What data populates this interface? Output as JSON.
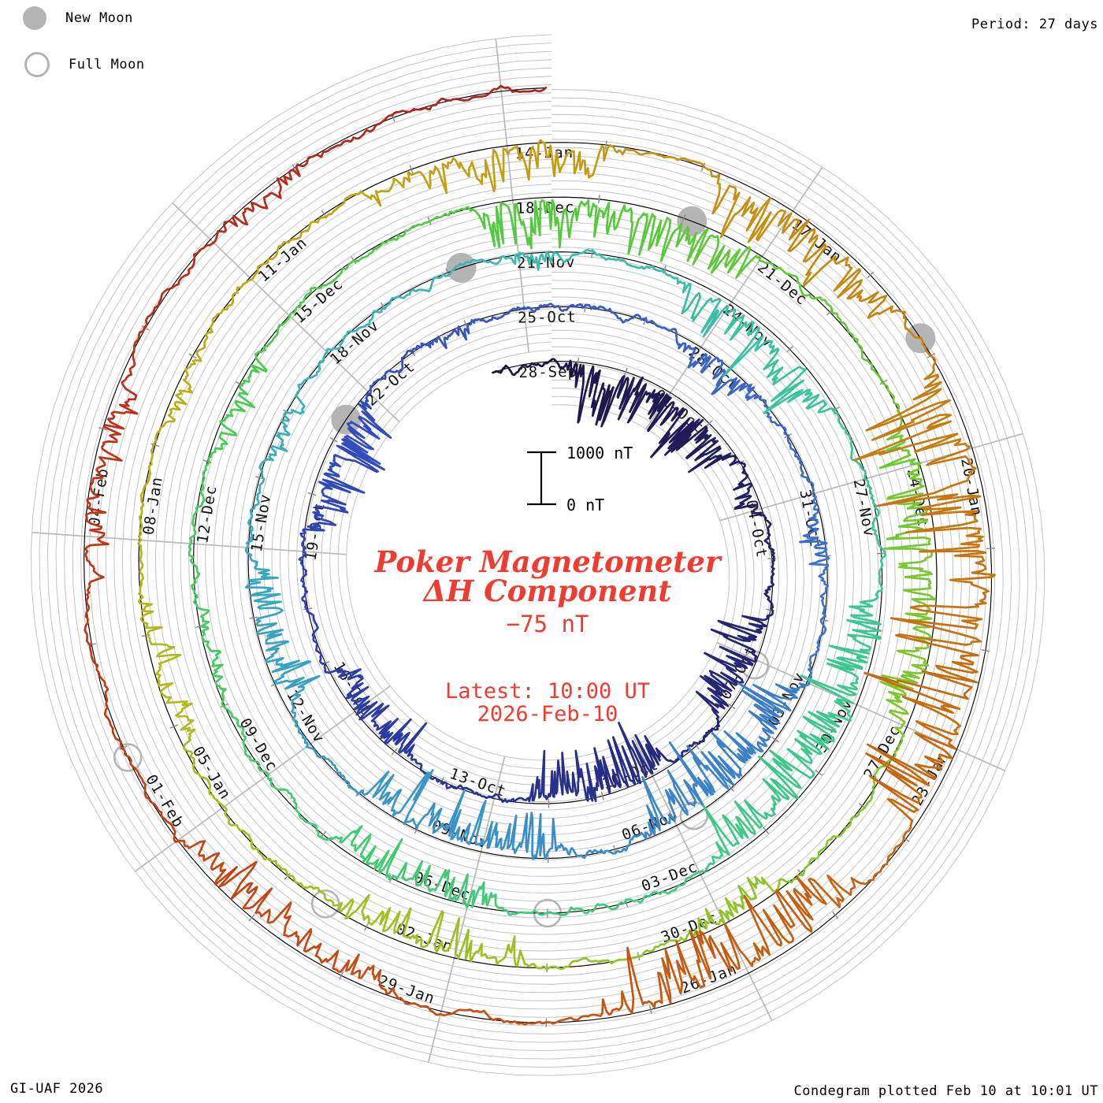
{
  "legend": {
    "new_moon": "New Moon",
    "full_moon": "Full Moon"
  },
  "header": {
    "period": "Period: 27 days"
  },
  "footer": {
    "left": "GI-UAF 2026",
    "right": "Condegram plotted Feb 10 at 10:01 UT"
  },
  "center": {
    "title_line1": "Poker Magnetometer",
    "title_line2": "ΔH Component",
    "baseline_offset": "−75 nT",
    "latest_line1": "Latest: 10:00 UT",
    "latest_line2": "2026-Feb-10"
  },
  "scalebar": {
    "top": "1000 nT",
    "bottom": "0 nT"
  },
  "colors": {
    "grid": "#c6c6c6",
    "spoke": "#b9b9b9",
    "baseline": "#000000",
    "tick": "#8a8a8a",
    "moon": "#b4b4b4",
    "annotation_red": "#ee3c31",
    "label_text": "#141414",
    "trace_stops": [
      [
        0.0,
        "#1d1545"
      ],
      [
        0.08,
        "#25297c"
      ],
      [
        0.16,
        "#2f46b8"
      ],
      [
        0.22,
        "#3a62c6"
      ],
      [
        0.3,
        "#3b8cc8"
      ],
      [
        0.37,
        "#38b0bb"
      ],
      [
        0.44,
        "#3cc49b"
      ],
      [
        0.52,
        "#3fcb70"
      ],
      [
        0.6,
        "#53c93f"
      ],
      [
        0.68,
        "#8ac529"
      ],
      [
        0.74,
        "#b0ba1d"
      ],
      [
        0.8,
        "#c49c12"
      ],
      [
        0.86,
        "#c66c10"
      ],
      [
        0.92,
        "#c64712"
      ],
      [
        0.97,
        "#b92e1b"
      ],
      [
        1.0,
        "#a8241a"
      ]
    ]
  },
  "chart_data": {
    "type": "line",
    "variant": "condegram (polar time-spiral of magnetometer data)",
    "station": "Poker Magnetometer",
    "component": "ΔH",
    "period_days": 27,
    "start_date": "28-Sep",
    "latest": "2026-Feb-10 10:00 UT",
    "total_days": 135.417,
    "lead_in_days": -0.8,
    "baseline_offset_nT": -75,
    "scale_bar_nT": 1000,
    "gridline_spacing_nT": 158,
    "label_step_days": 3,
    "date_labels": [
      {
        "t": 0,
        "label": "28-Sep"
      },
      {
        "t": 3,
        "label": "01-Oct"
      },
      {
        "t": 6,
        "label": "04-Oct"
      },
      {
        "t": 9,
        "label": "07-Oct"
      },
      {
        "t": 12,
        "label": "10-Oct"
      },
      {
        "t": 15,
        "label": "13-Oct"
      },
      {
        "t": 18,
        "label": "16-Oct"
      },
      {
        "t": 21,
        "label": "19-Oct"
      },
      {
        "t": 24,
        "label": "22-Oct"
      },
      {
        "t": 27,
        "label": "25-Oct"
      },
      {
        "t": 30,
        "label": "28-Oct"
      },
      {
        "t": 33,
        "label": "31-Oct"
      },
      {
        "t": 36,
        "label": "03-Nov"
      },
      {
        "t": 39,
        "label": "06-Nov"
      },
      {
        "t": 42,
        "label": "09-Nov"
      },
      {
        "t": 45,
        "label": "12-Nov"
      },
      {
        "t": 48,
        "label": "15-Nov"
      },
      {
        "t": 51,
        "label": "18-Nov"
      },
      {
        "t": 54,
        "label": "21-Nov"
      },
      {
        "t": 57,
        "label": "24-Nov"
      },
      {
        "t": 60,
        "label": "27-Nov"
      },
      {
        "t": 63,
        "label": "30-Nov"
      },
      {
        "t": 66,
        "label": "03-Dec"
      },
      {
        "t": 69,
        "label": "06-Dec"
      },
      {
        "t": 72,
        "label": "09-Dec"
      },
      {
        "t": 75,
        "label": "12-Dec"
      },
      {
        "t": 78,
        "label": "15-Dec"
      },
      {
        "t": 81,
        "label": "18-Dec"
      },
      {
        "t": 84,
        "label": "21-Dec"
      },
      {
        "t": 87,
        "label": "24-Dec"
      },
      {
        "t": 90,
        "label": "27-Dec"
      },
      {
        "t": 93,
        "label": "30-Dec"
      },
      {
        "t": 96,
        "label": "02-Jan"
      },
      {
        "t": 99,
        "label": "05-Jan"
      },
      {
        "t": 102,
        "label": "08-Jan"
      },
      {
        "t": 105,
        "label": "11-Jan"
      },
      {
        "t": 108,
        "label": "14-Jan"
      },
      {
        "t": 111,
        "label": "17-Jan"
      },
      {
        "t": 114,
        "label": "20-Jan"
      },
      {
        "t": 117,
        "label": "23-Jan"
      },
      {
        "t": 120,
        "label": "26-Jan"
      },
      {
        "t": 123,
        "label": "29-Jan"
      },
      {
        "t": 126,
        "label": "01-Feb"
      },
      {
        "t": 129,
        "label": "04-Feb"
      }
    ],
    "new_moons_day": [
      23.4,
      53.2,
      83.1,
      112.8
    ],
    "full_moons_day": [
      9.1,
      38.7,
      68.0,
      97.5,
      126.9
    ],
    "disturbances_day_nT": [
      [
        0.8,
        4.8,
        900
      ],
      [
        5.2,
        6.0,
        330
      ],
      [
        8.2,
        10.3,
        720
      ],
      [
        11.7,
        14.3,
        930
      ],
      [
        16.7,
        18.7,
        510
      ],
      [
        21.4,
        23.7,
        870
      ],
      [
        25.1,
        26.0,
        300
      ],
      [
        29.7,
        31.1,
        390
      ],
      [
        33.3,
        34.3,
        330
      ],
      [
        36.1,
        39.4,
        900
      ],
      [
        40.7,
        43.9,
        870
      ],
      [
        45.7,
        47.7,
        630
      ],
      [
        49.2,
        50.2,
        270
      ],
      [
        53.8,
        54.6,
        240
      ],
      [
        56.3,
        58.9,
        840
      ],
      [
        61.6,
        65.7,
        930
      ],
      [
        68.6,
        70.7,
        630
      ],
      [
        73.2,
        74.2,
        240
      ],
      [
        76.2,
        77.4,
        360
      ],
      [
        80.5,
        83.9,
        720
      ],
      [
        86.5,
        89.9,
        780
      ],
      [
        92.2,
        93.3,
        390
      ],
      [
        95.2,
        97.3,
        540
      ],
      [
        99.7,
        101.3,
        390
      ],
      [
        103.2,
        104.2,
        240
      ],
      [
        106.5,
        109.0,
        720
      ],
      [
        110.2,
        112.3,
        840
      ],
      [
        113.2,
        117.7,
        1500
      ],
      [
        118.7,
        121.3,
        930
      ],
      [
        123.5,
        125.9,
        630
      ],
      [
        128.5,
        130.5,
        390
      ],
      [
        132.1,
        133.1,
        210
      ]
    ]
  }
}
